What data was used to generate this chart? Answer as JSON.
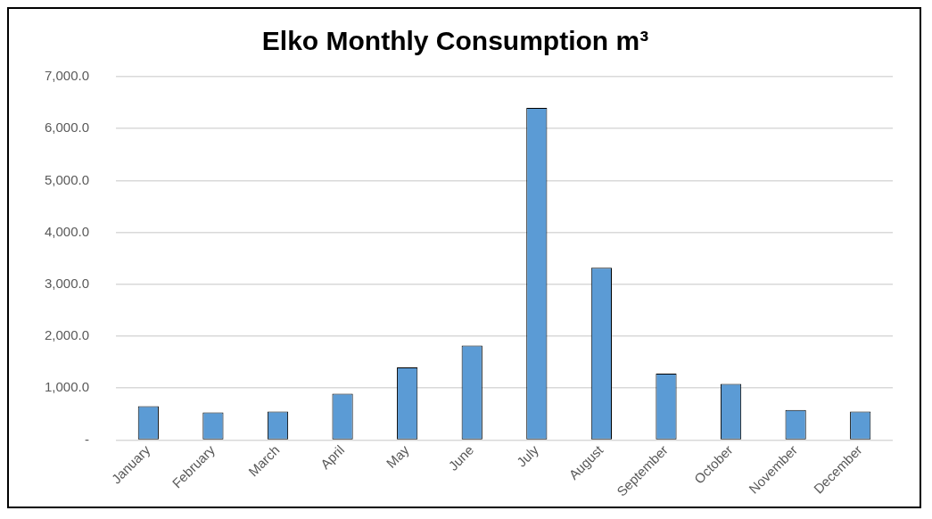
{
  "chart_data": {
    "type": "bar",
    "title": "Elko Monthly Consumption m³",
    "categories": [
      "January",
      "February",
      "March",
      "April",
      "May",
      "June",
      "July",
      "August",
      "September",
      "October",
      "November",
      "December"
    ],
    "values": [
      650,
      530,
      550,
      890,
      1400,
      1820,
      6400,
      3320,
      1280,
      1080,
      580,
      550
    ],
    "color": "#5b9bd5",
    "ylim": [
      0,
      7000
    ],
    "yticks": [
      {
        "value": 0,
        "label": "-"
      },
      {
        "value": 1000,
        "label": "1,000.0"
      },
      {
        "value": 2000,
        "label": "2,000.0"
      },
      {
        "value": 3000,
        "label": "3,000.0"
      },
      {
        "value": 4000,
        "label": "4,000.0"
      },
      {
        "value": 5000,
        "label": "5,000.0"
      },
      {
        "value": 6000,
        "label": "6,000.0"
      },
      {
        "value": 7000,
        "label": "7,000.0"
      }
    ],
    "grid": "y"
  }
}
